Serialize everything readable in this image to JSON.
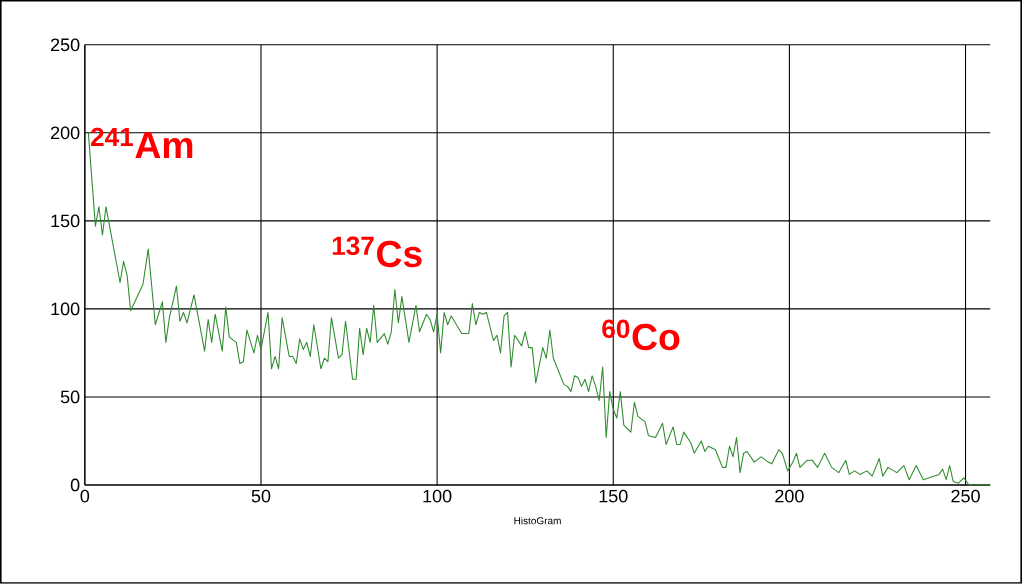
{
  "chart_data": {
    "type": "line",
    "xlabel": "HistoGram",
    "x": [
      1,
      3,
      4,
      5,
      6,
      10,
      11,
      12,
      13,
      16.5,
      18,
      20,
      22,
      23,
      24,
      26,
      27,
      28,
      29,
      31,
      34,
      35,
      36,
      37,
      39,
      40,
      41,
      43,
      44,
      45,
      46,
      48,
      49,
      50,
      52,
      53,
      54,
      55,
      56,
      58,
      59,
      60,
      61,
      62,
      63,
      64,
      65,
      67,
      68,
      69,
      70,
      72,
      73,
      74,
      76,
      77,
      78,
      79,
      80,
      81,
      82,
      83,
      85,
      86,
      87,
      88,
      89,
      90,
      92,
      94,
      95,
      97,
      98,
      99,
      100,
      101,
      102,
      103,
      104,
      107,
      109,
      110,
      111,
      112,
      113,
      114,
      116,
      117,
      118,
      119,
      120,
      121,
      122,
      124,
      125,
      126,
      127,
      128,
      130,
      131,
      132,
      133,
      134,
      136,
      137,
      138,
      139,
      140,
      141,
      142,
      143,
      144,
      145,
      146,
      147,
      148,
      149,
      150,
      151,
      152,
      153,
      155,
      156,
      157,
      159,
      160,
      162,
      164,
      165,
      167,
      168,
      169,
      170,
      172,
      173,
      175,
      176,
      177,
      179,
      181,
      182,
      183,
      184,
      185,
      186,
      187,
      188,
      190,
      192,
      194,
      195,
      196,
      197,
      198,
      199.5,
      201,
      202,
      203,
      205,
      206.5,
      208,
      210,
      212,
      214,
      216,
      217,
      218.5,
      220,
      222,
      223.5,
      225.5,
      226.5,
      228,
      230.5,
      232.5,
      234,
      236,
      238,
      239.5,
      241,
      242.5,
      243.5,
      244.5,
      245.5,
      246.5,
      248,
      249.5,
      251,
      257
    ],
    "series": [
      {
        "color": "#2e8b2e",
        "values": [
          200,
          147,
          158,
          142,
          158,
          115,
          127,
          119,
          99,
          114,
          134,
          91,
          104,
          81,
          95,
          113,
          93,
          98,
          92,
          108,
          76,
          94,
          81,
          97,
          76,
          101,
          84,
          81,
          69,
          70,
          88,
          75,
          85,
          77,
          98,
          66,
          73,
          66,
          95,
          73,
          73,
          69,
          83,
          77,
          81,
          73,
          91,
          66,
          72,
          70,
          95,
          72,
          74,
          93,
          60,
          60,
          89,
          74,
          89,
          81,
          102,
          81,
          86,
          80,
          87,
          111,
          92,
          107,
          81,
          102,
          87,
          97,
          94,
          87,
          97,
          75,
          98,
          91,
          96,
          86,
          86,
          103,
          91,
          98,
          97,
          98,
          82,
          85,
          75,
          96,
          98,
          67,
          85,
          79,
          87,
          78,
          78,
          58,
          78,
          72,
          88,
          72,
          67,
          57,
          56,
          53,
          62,
          61,
          56,
          60,
          53,
          62,
          56,
          48,
          67,
          27,
          53,
          43,
          38,
          53,
          34,
          30,
          47,
          39,
          36,
          28,
          27,
          35,
          23,
          33,
          23,
          23,
          30,
          24,
          18,
          25,
          19,
          22,
          20,
          10,
          10,
          22,
          16,
          27,
          7,
          18,
          19,
          13,
          16,
          13,
          12,
          16,
          20,
          18,
          8,
          13,
          18,
          10,
          14,
          14,
          10,
          18,
          10,
          7,
          14,
          6,
          8,
          6,
          8,
          5,
          15,
          5,
          10,
          7,
          11,
          3,
          11,
          3,
          4,
          5,
          6,
          9,
          3,
          11,
          2,
          1,
          4,
          0,
          0
        ]
      }
    ],
    "xlim": [
      0,
      257
    ],
    "ylim": [
      0,
      250
    ],
    "xticks": [
      0,
      50,
      100,
      150,
      200,
      250
    ],
    "yticks": [
      0,
      50,
      100,
      150,
      200,
      250
    ],
    "grid": true,
    "marker": "none",
    "line_style": "solid",
    "annotations": [
      "$^{241}$Am",
      "$^{137}$Cs",
      "$^{60}$Co"
    ]
  }
}
